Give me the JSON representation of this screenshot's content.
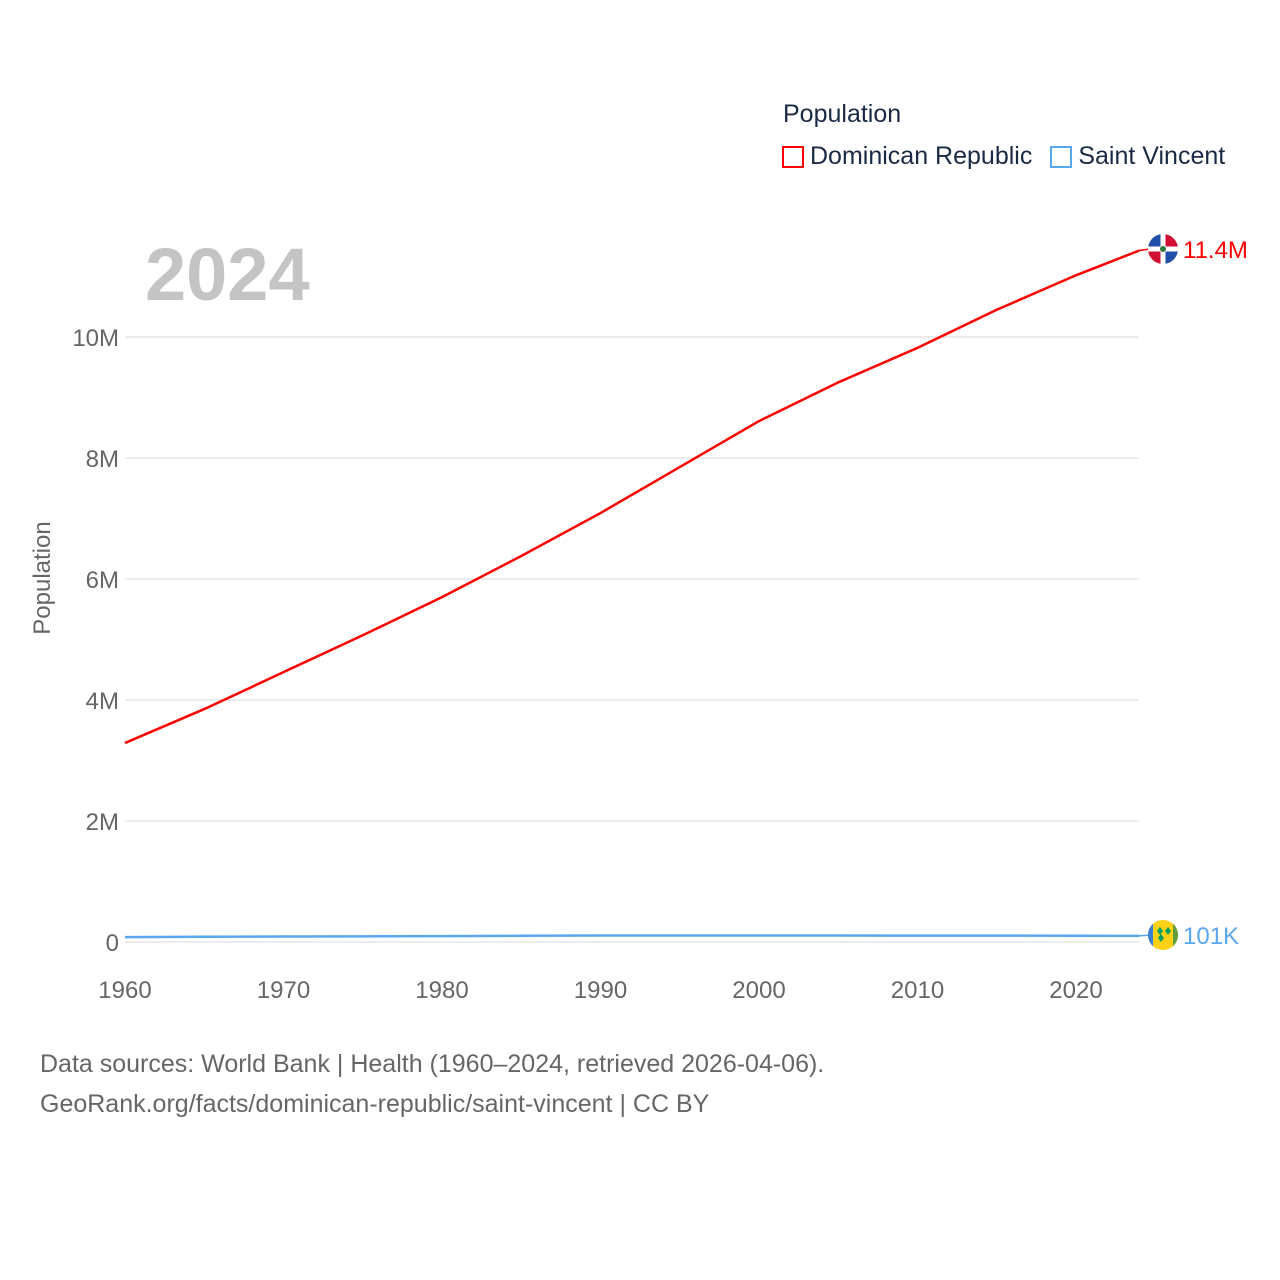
{
  "chart_data": {
    "type": "line",
    "title": "",
    "year_label": "2024",
    "legend_title": "Population",
    "ylabel": "Population",
    "xlabel": "",
    "xlim": [
      1960,
      2024
    ],
    "ylim": [
      0,
      11500000
    ],
    "x_ticks": [
      "1960",
      "1970",
      "1980",
      "1990",
      "2000",
      "2010",
      "2020"
    ],
    "x_tick_values": [
      1960,
      1970,
      1980,
      1990,
      2000,
      2010,
      2020
    ],
    "y_ticks": [
      "0",
      "2M",
      "4M",
      "6M",
      "8M",
      "10M"
    ],
    "y_tick_values": [
      0,
      2000000,
      4000000,
      6000000,
      8000000,
      10000000
    ],
    "grid": true,
    "legend_position": "top-right",
    "x": [
      1960,
      1965,
      1970,
      1975,
      1980,
      1985,
      1990,
      1995,
      2000,
      2005,
      2010,
      2015,
      2020,
      2024
    ],
    "series": [
      {
        "name": "Dominican Republic",
        "color": "#ff0000",
        "end_label": "11.4M",
        "values": [
          3290000,
          3850000,
          4460000,
          5070000,
          5700000,
          6380000,
          7090000,
          7850000,
          8610000,
          9250000,
          9820000,
          10450000,
          11020000,
          11430000
        ]
      },
      {
        "name": "Saint Vincent",
        "color": "#5aa7f0",
        "end_label": "101K",
        "values": [
          81000,
          86000,
          90000,
          94000,
          98000,
          103000,
          107000,
          108000,
          108000,
          107000,
          106000,
          105000,
          104000,
          101000
        ]
      }
    ]
  },
  "source": {
    "line1": "Data sources: World Bank | Health (1960–2024, retrieved 2026-04-06).",
    "line2": "GeoRank.org/facts/dominican-republic/saint-vincent | CC BY"
  }
}
